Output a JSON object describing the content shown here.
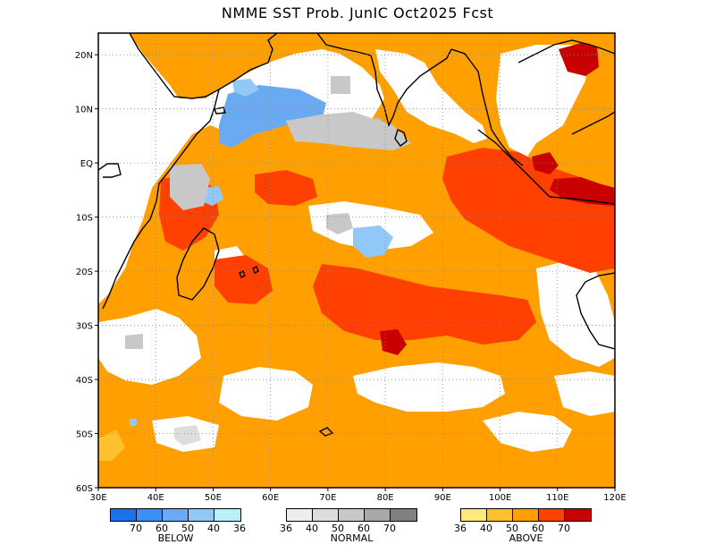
{
  "title": "NMME SST Prob. JunIC  Oct2025 Fcst",
  "map": {
    "lon_range": [
      30,
      120
    ],
    "lat_range": [
      -60,
      24
    ],
    "lon_ticks": [
      "30E",
      "40E",
      "50E",
      "60E",
      "70E",
      "80E",
      "90E",
      "100E",
      "110E",
      "120E"
    ],
    "lat_ticks": [
      {
        "lat": 20,
        "label": "20N"
      },
      {
        "lat": 10,
        "label": "10N"
      },
      {
        "lat": 0,
        "label": "EQ"
      },
      {
        "lat": -10,
        "label": "10S"
      },
      {
        "lat": -20,
        "label": "20S"
      },
      {
        "lat": -30,
        "label": "30S"
      },
      {
        "lat": -40,
        "label": "40S"
      },
      {
        "lat": -50,
        "label": "50S"
      },
      {
        "lat": -60,
        "label": "60S"
      }
    ],
    "grid": "dotted"
  },
  "legend": {
    "below": {
      "label": "BELOW",
      "colors": [
        "#1f6fe6",
        "#3f8ff0",
        "#6aaaf2",
        "#92c8f8",
        "#b8f0f8"
      ],
      "ticks": [
        "70",
        "60",
        "50",
        "40",
        "36"
      ]
    },
    "normal": {
      "label": "NORMAL",
      "colors": [
        "#eeeeee",
        "#dddddd",
        "#c8c8c8",
        "#a8a8a8",
        "#808080"
      ],
      "ticks": [
        "36",
        "40",
        "50",
        "60",
        "70"
      ]
    },
    "above": {
      "label": "ABOVE",
      "colors": [
        "#ffe880",
        "#ffc030",
        "#ffa000",
        "#ff4000",
        "#c80000"
      ],
      "ticks": [
        "36",
        "40",
        "50",
        "60",
        "70"
      ]
    }
  }
}
